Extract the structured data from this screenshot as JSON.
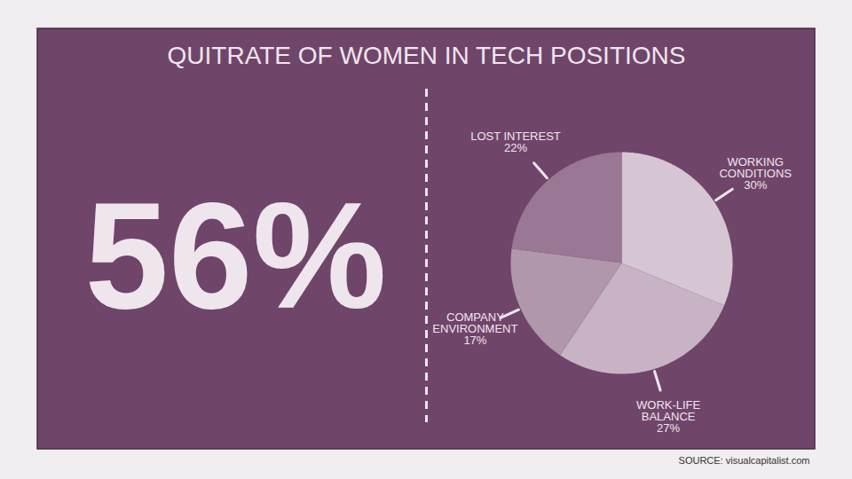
{
  "chart_data": {
    "type": "pie",
    "title": "QUITRATE OF WOMEN IN TECH POSITIONS",
    "categories": [
      "WORKING CONDITIONS",
      "WORK-LIFE BALANCE",
      "COMPANY ENVIRONMENT",
      "LOST INTEREST"
    ],
    "values": [
      30,
      27,
      17,
      22
    ],
    "value_labels": [
      "30%",
      "27%",
      "17%",
      "22%"
    ],
    "colors": [
      "#d6c6d3",
      "#c8b3c5",
      "#b197ab",
      "#9a7794"
    ],
    "data_labels": true,
    "annotations": [
      "56%"
    ],
    "source": "SOURCE: visualcapitalist.com"
  }
}
